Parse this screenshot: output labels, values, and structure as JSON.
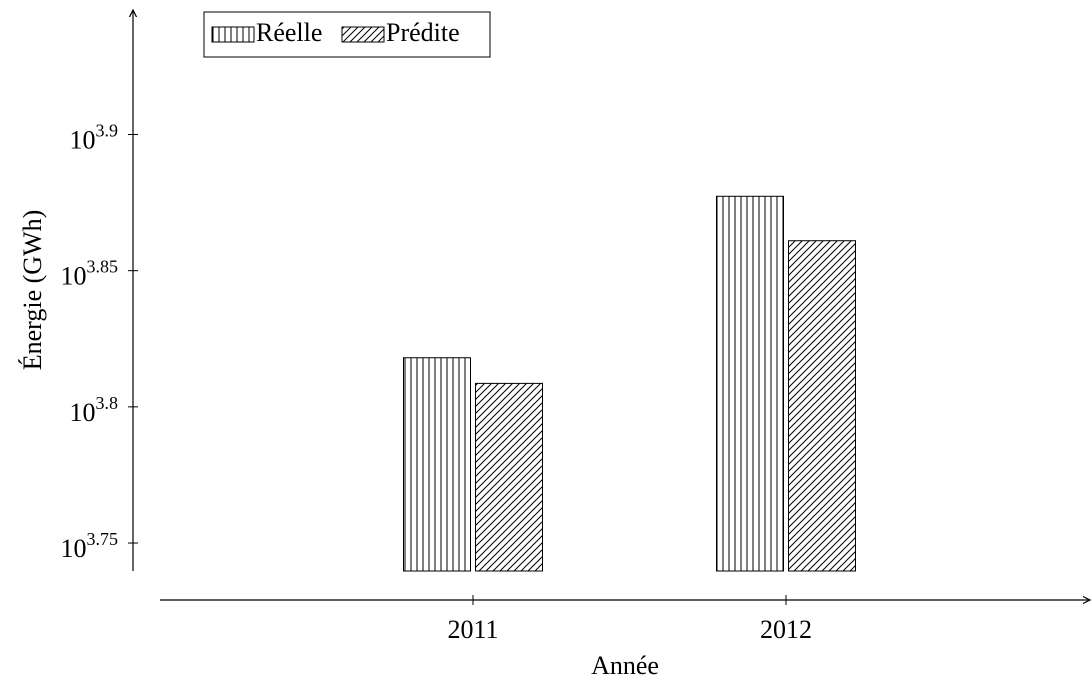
{
  "chart_data": {
    "type": "bar",
    "x_label": "Année",
    "y_label": "Énergie (GWh)",
    "categories": [
      "2011",
      "2012"
    ],
    "series": [
      {
        "name": "Réelle",
        "color": "#000000",
        "pattern": "vertical lines",
        "values": [
          6577,
          7539
        ]
      },
      {
        "name": "Prédite",
        "color": "#000000",
        "pattern": "north east lines",
        "values": [
          6436,
          7261
        ]
      }
    ],
    "log_scale": true,
    "ylim": [
      5492,
      8810
    ],
    "yticks": [
      {
        "value": 5623.41,
        "label": "10",
        "exponent": "3.75"
      },
      {
        "value": 6309.57,
        "label": "10",
        "exponent": "3.8"
      },
      {
        "value": 7079.46,
        "label": "10",
        "exponent": "3.85"
      },
      {
        "value": 7943.28,
        "label": "10",
        "exponent": "3.9"
      }
    ],
    "grid": false,
    "legend": "top-left"
  }
}
